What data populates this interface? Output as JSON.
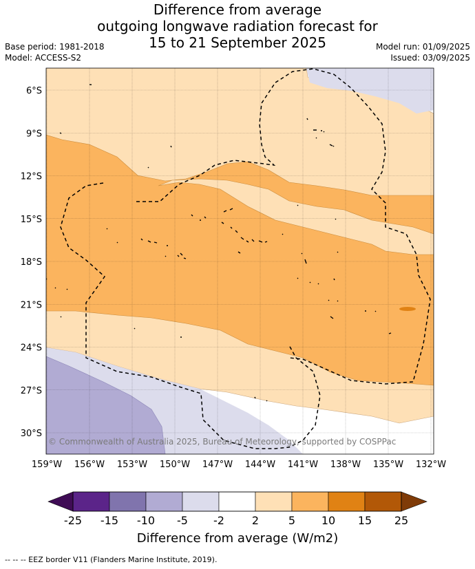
{
  "title": {
    "line1": "Difference from average",
    "line2": "outgoing longwave radiation forecast for",
    "line3": "15 to 21 September 2025"
  },
  "meta": {
    "base_period": "Base period: 1981-2018",
    "model": "Model: ACCESS-S2",
    "model_run": "Model run: 01/09/2025",
    "issued": "Issued: 03/09/2025"
  },
  "map": {
    "copyright": "© Commonwealth of Australia 2025, Bureau of Meteorology, supported by COSPPac",
    "lat_labels": [
      "6°S",
      "9°S",
      "12°S",
      "15°S",
      "18°S",
      "21°S",
      "24°S",
      "27°S",
      "30°S"
    ],
    "lon_labels": [
      "159°W",
      "156°W",
      "153°W",
      "150°W",
      "147°W",
      "144°W",
      "141°W",
      "138°W",
      "135°W",
      "132°W"
    ]
  },
  "colorbar": {
    "label": "Difference from average (W/m2)",
    "ticks": [
      "-25",
      "-15",
      "-10",
      "-5",
      "-2",
      "2",
      "5",
      "10",
      "15",
      "25"
    ],
    "colors": {
      "under": "#3f0c55",
      "bins": [
        "#5b2489",
        "#8074ad",
        "#b1abd3",
        "#dcdcec",
        "#ffffff",
        "#fee0b6",
        "#fbb45e",
        "#e08214",
        "#b25807"
      ],
      "over": "#7f3b08"
    }
  },
  "footer": "--  --  -- EEZ border V11 (Flanders Marine Institute, 2019)."
}
